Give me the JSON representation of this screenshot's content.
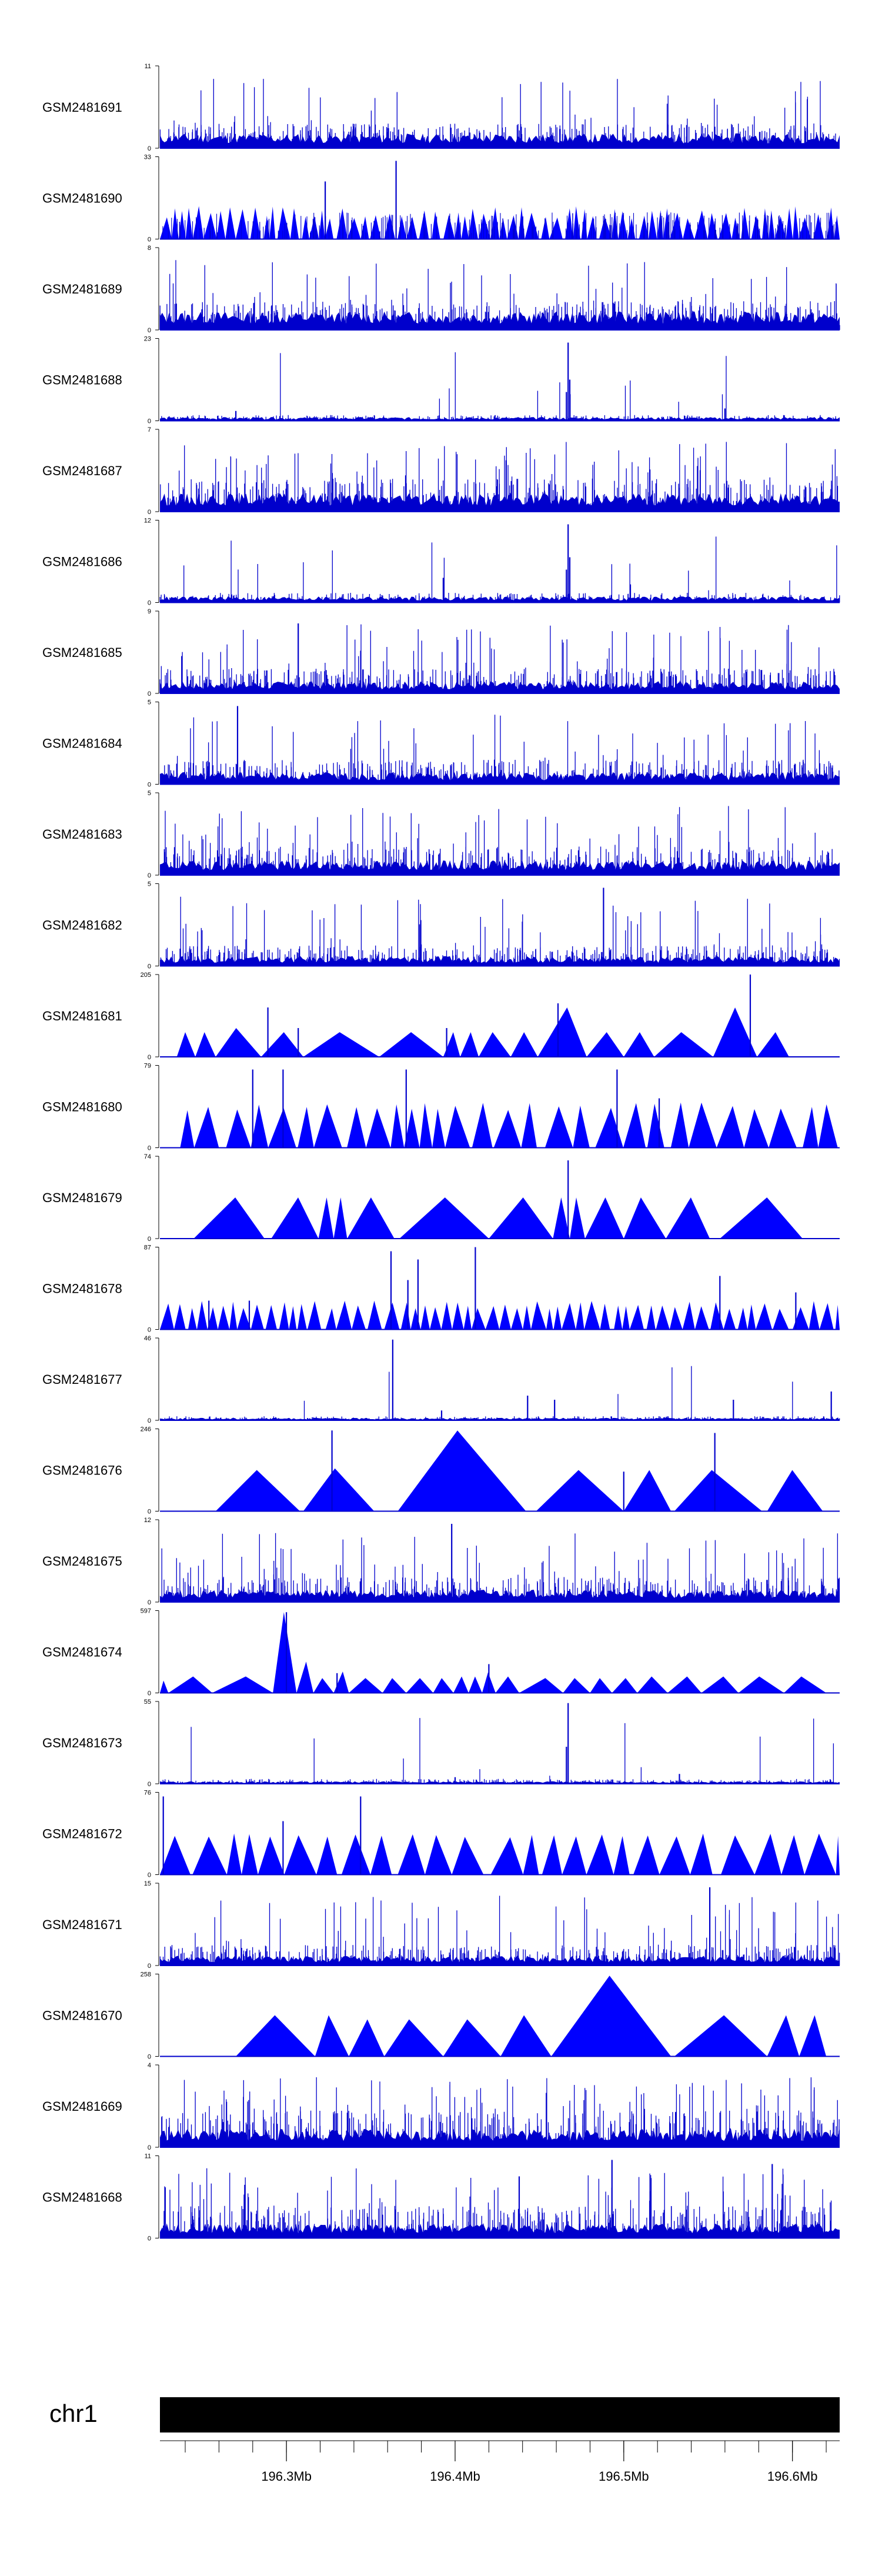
{
  "chart_data": {
    "type": "area",
    "colors": {
      "signal": "#0000cc",
      "light": "#0000ff",
      "axis": "#000000",
      "ideogram": "#000000"
    },
    "x_domain": [
      196.225,
      196.628
    ],
    "tracks": [
      {
        "name": "GSM2481691",
        "ymax": "11",
        "style": "dense",
        "seed": 11,
        "base": 0.12,
        "bar": 0.3,
        "spike": 0.04,
        "peaks": []
      },
      {
        "name": "GSM2481690",
        "ymax": "33",
        "style": "triangles",
        "seed": 12,
        "tri_count": 70,
        "tri_h": [
          0.25,
          0.4
        ],
        "peaks": [
          [
            196.323,
            0.7
          ],
          [
            196.365,
            0.95
          ]
        ],
        "bg_bars": 0.25
      },
      {
        "name": "GSM2481689",
        "ymax": "8",
        "style": "dense",
        "seed": 13,
        "base": 0.15,
        "bar": 0.35,
        "spike": 0.05,
        "peaks": []
      },
      {
        "name": "GSM2481688",
        "ymax": "23",
        "style": "sparse",
        "seed": 14,
        "base": 0.03,
        "bar": 0.07,
        "spike": 0.01,
        "peaks": [
          [
            196.467,
            0.95
          ],
          [
            196.468,
            0.5
          ],
          [
            196.466,
            0.35
          ],
          [
            196.56,
            0.15
          ],
          [
            196.27,
            0.12
          ]
        ]
      },
      {
        "name": "GSM2481687",
        "ymax": "7",
        "style": "dense",
        "seed": 15,
        "base": 0.15,
        "bar": 0.4,
        "spike": 0.05,
        "peaks": []
      },
      {
        "name": "GSM2481686",
        "ymax": "12",
        "style": "sparse",
        "seed": 16,
        "base": 0.05,
        "bar": 0.12,
        "spike": 0.02,
        "peaks": [
          [
            196.467,
            0.95
          ],
          [
            196.468,
            0.55
          ],
          [
            196.466,
            0.4
          ],
          [
            196.393,
            0.3
          ]
        ]
      },
      {
        "name": "GSM2481685",
        "ymax": "9",
        "style": "dense",
        "seed": 17,
        "base": 0.1,
        "bar": 0.3,
        "spike": 0.05,
        "peaks": [
          [
            196.307,
            0.85
          ]
        ]
      },
      {
        "name": "GSM2481684",
        "ymax": "5",
        "style": "dense",
        "seed": 18,
        "base": 0.1,
        "bar": 0.3,
        "spike": 0.05,
        "peaks": [
          [
            196.271,
            0.95
          ]
        ]
      },
      {
        "name": "GSM2481683",
        "ymax": "5",
        "style": "dense",
        "seed": 19,
        "base": 0.12,
        "bar": 0.35,
        "spike": 0.05,
        "peaks": []
      },
      {
        "name": "GSM2481682",
        "ymax": "5",
        "style": "dense",
        "seed": 20,
        "base": 0.08,
        "bar": 0.25,
        "spike": 0.05,
        "peaks": [
          [
            196.488,
            0.95
          ]
        ]
      },
      {
        "name": "GSM2481681",
        "ymax": "205",
        "style": "triangles",
        "seed": 21,
        "tri": [
          [
            196.235,
            196.246,
            0.3
          ],
          [
            196.246,
            196.258,
            0.3
          ],
          [
            196.258,
            196.285,
            0.35
          ],
          [
            196.285,
            196.31,
            0.3
          ],
          [
            196.31,
            196.355,
            0.3
          ],
          [
            196.355,
            196.393,
            0.3
          ],
          [
            196.393,
            196.403,
            0.3
          ],
          [
            196.403,
            196.414,
            0.3
          ],
          [
            196.414,
            196.433,
            0.3
          ],
          [
            196.433,
            196.449,
            0.3
          ],
          [
            196.449,
            196.478,
            0.6
          ],
          [
            196.478,
            196.5,
            0.3
          ],
          [
            196.5,
            196.518,
            0.3
          ],
          [
            196.518,
            196.553,
            0.3
          ],
          [
            196.553,
            196.579,
            0.6
          ],
          [
            196.579,
            196.598,
            0.3
          ]
        ],
        "peaks": [
          [
            196.289,
            0.6
          ],
          [
            196.307,
            0.35
          ],
          [
            196.395,
            0.35
          ],
          [
            196.461,
            0.65
          ],
          [
            196.575,
            1.0
          ]
        ]
      },
      {
        "name": "GSM2481680",
        "ymax": "79",
        "style": "triangles",
        "seed": 22,
        "tri_count": 30,
        "tri_h": [
          0.45,
          0.55
        ],
        "peaks": [
          [
            196.28,
            0.95
          ],
          [
            196.298,
            0.95
          ],
          [
            196.371,
            0.95
          ],
          [
            196.496,
            0.95
          ],
          [
            196.521,
            0.6
          ]
        ],
        "start": 196.237
      },
      {
        "name": "GSM2481679",
        "ymax": "74",
        "style": "triangles",
        "seed": 23,
        "tri": [
          [
            196.245,
            196.287,
            0.5
          ],
          [
            196.291,
            196.319,
            0.5
          ],
          [
            196.319,
            196.328,
            0.5
          ],
          [
            196.328,
            196.336,
            0.5
          ],
          [
            196.336,
            196.364,
            0.5
          ],
          [
            196.367,
            196.42,
            0.5
          ],
          [
            196.42,
            196.458,
            0.5
          ],
          [
            196.458,
            196.468,
            0.5
          ],
          [
            196.468,
            196.477,
            0.5
          ],
          [
            196.477,
            196.5,
            0.5
          ],
          [
            196.5,
            196.525,
            0.5
          ],
          [
            196.525,
            196.551,
            0.5
          ],
          [
            196.557,
            196.606,
            0.5
          ]
        ],
        "peaks": [
          [
            196.467,
            0.95
          ]
        ]
      },
      {
        "name": "GSM2481678",
        "ymax": "87",
        "style": "triangles",
        "seed": 24,
        "tri_count": 60,
        "tri_h": [
          0.25,
          0.35
        ],
        "peaks": [
          [
            196.254,
            0.35
          ],
          [
            196.278,
            0.35
          ],
          [
            196.362,
            0.95
          ],
          [
            196.378,
            0.85
          ],
          [
            196.372,
            0.6
          ],
          [
            196.412,
            1.0
          ],
          [
            196.557,
            0.65
          ],
          [
            196.602,
            0.45
          ]
        ]
      },
      {
        "name": "GSM2481677",
        "ymax": "46",
        "style": "sparse",
        "seed": 25,
        "base": 0.02,
        "bar": 0.05,
        "spike": 0.01,
        "peaks": [
          [
            196.363,
            0.98
          ],
          [
            196.392,
            0.12
          ],
          [
            196.443,
            0.3
          ],
          [
            196.459,
            0.25
          ],
          [
            196.565,
            0.25
          ],
          [
            196.623,
            0.35
          ]
        ]
      },
      {
        "name": "GSM2481676",
        "ymax": "246",
        "style": "triangles",
        "seed": 26,
        "tri": [
          [
            196.258,
            196.308,
            0.5
          ],
          [
            196.31,
            196.352,
            0.52
          ],
          [
            196.366,
            196.442,
            0.98
          ],
          [
            196.448,
            196.5,
            0.5
          ],
          [
            196.5,
            196.528,
            0.5
          ],
          [
            196.53,
            196.582,
            0.5
          ],
          [
            196.585,
            196.618,
            0.5
          ]
        ],
        "peaks": [
          [
            196.327,
            0.98
          ],
          [
            196.5,
            0.48
          ],
          [
            196.554,
            0.95
          ]
        ]
      },
      {
        "name": "GSM2481675",
        "ymax": "12",
        "style": "dense",
        "seed": 27,
        "base": 0.1,
        "bar": 0.3,
        "spike": 0.05,
        "peaks": [
          [
            196.398,
            0.95
          ]
        ]
      },
      {
        "name": "GSM2481674",
        "ymax": "597",
        "style": "triangles",
        "seed": 28,
        "tri": [
          [
            196.225,
            196.23,
            0.15
          ],
          [
            196.23,
            196.256,
            0.2
          ],
          [
            196.256,
            196.292,
            0.2
          ],
          [
            196.292,
            196.306,
            0.98
          ],
          [
            196.306,
            196.316,
            0.38
          ],
          [
            196.316,
            196.328,
            0.18
          ],
          [
            196.328,
            196.337,
            0.26
          ],
          [
            196.337,
            196.357,
            0.18
          ],
          [
            196.357,
            196.371,
            0.18
          ],
          [
            196.371,
            196.387,
            0.18
          ],
          [
            196.387,
            196.399,
            0.18
          ],
          [
            196.399,
            196.408,
            0.2
          ],
          [
            196.408,
            196.416,
            0.2
          ],
          [
            196.416,
            196.424,
            0.25
          ],
          [
            196.424,
            196.438,
            0.2
          ],
          [
            196.438,
            196.464,
            0.18
          ],
          [
            196.464,
            196.48,
            0.18
          ],
          [
            196.48,
            196.493,
            0.18
          ],
          [
            196.493,
            196.508,
            0.18
          ],
          [
            196.508,
            196.526,
            0.2
          ],
          [
            196.526,
            196.546,
            0.2
          ],
          [
            196.546,
            196.568,
            0.2
          ],
          [
            196.568,
            196.595,
            0.2
          ],
          [
            196.595,
            196.62,
            0.2
          ]
        ],
        "peaks": [
          [
            196.3,
            0.98
          ],
          [
            196.33,
            0.24
          ],
          [
            196.42,
            0.35
          ]
        ]
      },
      {
        "name": "GSM2481673",
        "ymax": "55",
        "style": "sparse",
        "seed": 29,
        "base": 0.02,
        "bar": 0.06,
        "spike": 0.01,
        "peaks": [
          [
            196.467,
            0.98
          ],
          [
            196.466,
            0.45
          ],
          [
            196.533,
            0.12
          ],
          [
            196.4,
            0.08
          ]
        ]
      },
      {
        "name": "GSM2481672",
        "ymax": "76",
        "style": "triangles",
        "seed": 30,
        "tri_count": 28,
        "tri_h": [
          0.45,
          0.5
        ],
        "peaks": [
          [
            196.227,
            0.95
          ],
          [
            196.298,
            0.65
          ],
          [
            196.344,
            0.95
          ]
        ]
      },
      {
        "name": "GSM2481671",
        "ymax": "15",
        "style": "dense",
        "seed": 31,
        "base": 0.08,
        "bar": 0.25,
        "spike": 0.05,
        "peaks": [
          [
            196.551,
            0.95
          ]
        ]
      },
      {
        "name": "GSM2481670",
        "ymax": "258",
        "style": "triangles",
        "seed": 32,
        "tri": [
          [
            196.27,
            196.317,
            0.5
          ],
          [
            196.317,
            196.337,
            0.5
          ],
          [
            196.337,
            196.358,
            0.45
          ],
          [
            196.358,
            196.393,
            0.45
          ],
          [
            196.393,
            196.427,
            0.45
          ],
          [
            196.427,
            196.457,
            0.5
          ],
          [
            196.457,
            196.528,
            0.98
          ],
          [
            196.53,
            196.585,
            0.5
          ],
          [
            196.585,
            196.604,
            0.5
          ],
          [
            196.604,
            196.62,
            0.5
          ]
        ],
        "peaks": []
      },
      {
        "name": "GSM2481669",
        "ymax": "4",
        "style": "dense",
        "seed": 33,
        "base": 0.15,
        "bar": 0.45,
        "spike": 0.06,
        "peaks": []
      },
      {
        "name": "GSM2481668",
        "ymax": "11",
        "style": "dense",
        "seed": 34,
        "base": 0.12,
        "bar": 0.4,
        "spike": 0.05,
        "peaks": [
          [
            196.493,
            0.95
          ],
          [
            196.588,
            0.9
          ],
          [
            196.438,
            0.75
          ]
        ]
      }
    ],
    "ideogram": {
      "chrom": "chr1",
      "ticks": [
        196.3,
        196.4,
        196.5,
        196.6
      ],
      "tick_labels": [
        "196.3Mb",
        "196.4Mb",
        "196.5Mb",
        "196.6Mb"
      ],
      "minor_step": 0.02
    }
  }
}
